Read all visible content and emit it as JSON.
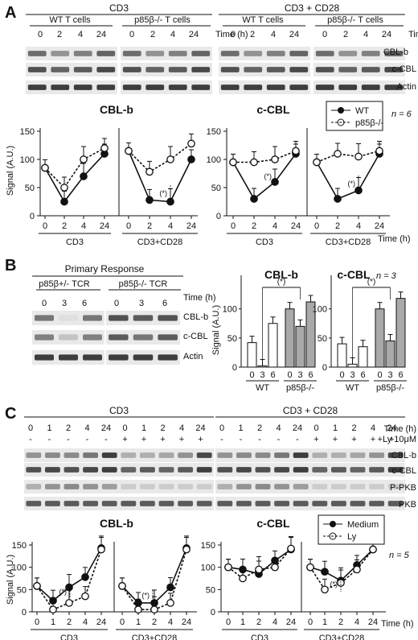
{
  "panel_labels": [
    "A",
    "B",
    "C"
  ],
  "colors": {
    "line": "#111111",
    "bar_white": "#ffffff",
    "bar_grey": "#a9a9a9",
    "band_bg": "#e9e9e9",
    "band": "#2b2b2b"
  },
  "A": {
    "treatment_left": "CD3",
    "treatment_right": "CD3 + CD28",
    "group_wt": "WT T cells",
    "group_ko": "p85β-/- T cells",
    "time_label": "Time (h)",
    "lanes": [
      "0",
      "2",
      "4",
      "24"
    ],
    "blots": [
      "CBL-b",
      "c-CBL",
      "Actin"
    ],
    "chart_titles": [
      "CBL-b",
      "c-CBL"
    ],
    "legend": [
      "WT",
      "p85β-/-"
    ],
    "n_label": "n = 6",
    "ylabel": "Signal (A.U.)",
    "yticks": [
      "0",
      "50",
      "100",
      "150"
    ],
    "xticks": [
      "0",
      "2",
      "4",
      "24"
    ],
    "xgroups": [
      "CD3",
      "CD3+CD28"
    ],
    "xlabel": "Time (h)",
    "sig": "(*)"
  },
  "B": {
    "title": "Primary Response",
    "group_het": "p85β+/- TCR",
    "group_ko": "p85β-/- TCR",
    "time_label": "Time (h)",
    "lanes": [
      "0",
      "3",
      "6"
    ],
    "blots": [
      "CBL-b",
      "c-CBL",
      "Actin"
    ],
    "chart_titles": [
      "CBL-b",
      "c-CBL"
    ],
    "n_label": "n = 3",
    "ylabel": "Signal (A.U.)",
    "yticks": [
      "0",
      "50",
      "100"
    ],
    "xticks": [
      "0",
      "3",
      "6"
    ],
    "xgroups": [
      "WT",
      "p85β-/-"
    ],
    "sig": "(*)"
  },
  "C": {
    "treatment_left": "CD3",
    "treatment_right": "CD3 + CD28",
    "time_label": "Time (h)",
    "ly_label": "+Ly 10μM",
    "lanes": [
      "0",
      "1",
      "2",
      "4",
      "24",
      "0",
      "1",
      "2",
      "4",
      "24"
    ],
    "ly_marks": [
      "-",
      "-",
      "-",
      "-",
      "-",
      "+",
      "+",
      "+",
      "+",
      "+"
    ],
    "blots": [
      "CBL-b",
      "c-CBL",
      "P-PKB",
      "PKB"
    ],
    "chart_titles": [
      "CBL-b",
      "c-CBL"
    ],
    "legend": [
      "Medium",
      "Ly"
    ],
    "n_label": "n = 5",
    "ylabel": "Signal (A.U.)",
    "yticks": [
      "0",
      "50",
      "100",
      "150"
    ],
    "xticks": [
      "0",
      "1",
      "2",
      "4",
      "24"
    ],
    "xgroups": [
      "CD3",
      "CD3+CD28"
    ],
    "xlabel": "Time (h)",
    "sig": "(*)"
  },
  "chart_data": [
    {
      "type": "line",
      "panel": "A",
      "title": "CBL-b",
      "ylabel": "Signal (A.U.)",
      "ylim": [
        0,
        150
      ],
      "x": [
        "0",
        "2",
        "4",
        "24"
      ],
      "grid": false,
      "legend_position": "top-right",
      "series": [
        {
          "name": "WT",
          "group": "CD3",
          "values": [
            85,
            25,
            70,
            110
          ]
        },
        {
          "name": "p85β-/-",
          "group": "CD3",
          "values": [
            85,
            50,
            100,
            120
          ]
        },
        {
          "name": "WT",
          "group": "CD3+CD28",
          "values": [
            115,
            28,
            25,
            100
          ]
        },
        {
          "name": "p85β-/-",
          "group": "CD3+CD28",
          "values": [
            115,
            78,
            100,
            128
          ]
        }
      ]
    },
    {
      "type": "line",
      "panel": "A",
      "title": "c-CBL",
      "ylabel": "Signal (A.U.)",
      "ylim": [
        0,
        150
      ],
      "x": [
        "0",
        "2",
        "4",
        "24"
      ],
      "grid": false,
      "legend_position": "top-right",
      "series": [
        {
          "name": "WT",
          "group": "CD3",
          "values": [
            95,
            30,
            60,
            110
          ]
        },
        {
          "name": "p85β-/-",
          "group": "CD3",
          "values": [
            95,
            95,
            100,
            115
          ]
        },
        {
          "name": "WT",
          "group": "CD3+CD28",
          "values": [
            95,
            30,
            45,
            110
          ]
        },
        {
          "name": "p85β-/-",
          "group": "CD3+CD28",
          "values": [
            95,
            110,
            105,
            115
          ]
        }
      ]
    },
    {
      "type": "bar",
      "panel": "B",
      "title": "CBL-b",
      "ylabel": "Signal (A.U.)",
      "ylim": [
        0,
        130
      ],
      "categories": [
        "0",
        "3",
        "6",
        "0",
        "3",
        "6"
      ],
      "groups": [
        "WT",
        "WT",
        "WT",
        "p85β-/-",
        "p85β-/-",
        "p85β-/-"
      ],
      "values": [
        42,
        2,
        75,
        100,
        70,
        112
      ]
    },
    {
      "type": "bar",
      "panel": "B",
      "title": "c-CBL",
      "ylabel": "Signal (A.U.)",
      "ylim": [
        0,
        130
      ],
      "categories": [
        "0",
        "3",
        "6",
        "0",
        "3",
        "6"
      ],
      "groups": [
        "WT",
        "WT",
        "WT",
        "p85β-/-",
        "p85β-/-",
        "p85β-/-"
      ],
      "values": [
        40,
        5,
        35,
        100,
        45,
        118
      ]
    },
    {
      "type": "line",
      "panel": "C",
      "title": "CBL-b",
      "ylabel": "Signal (A.U.)",
      "ylim": [
        0,
        150
      ],
      "x": [
        "0",
        "1",
        "2",
        "4",
        "24"
      ],
      "grid": false,
      "legend_position": "top-right",
      "series": [
        {
          "name": "Medium",
          "group": "CD3",
          "values": [
            58,
            25,
            55,
            78,
            143
          ]
        },
        {
          "name": "Ly",
          "group": "CD3",
          "values": [
            58,
            5,
            20,
            35,
            140
          ]
        },
        {
          "name": "Medium",
          "group": "CD3+CD28",
          "values": [
            58,
            20,
            20,
            55,
            143
          ]
        },
        {
          "name": "Ly",
          "group": "CD3+CD28",
          "values": [
            58,
            5,
            5,
            20,
            140
          ]
        }
      ]
    },
    {
      "type": "line",
      "panel": "C",
      "title": "c-CBL",
      "ylabel": "Signal (A.U.)",
      "ylim": [
        0,
        150
      ],
      "x": [
        "0",
        "1",
        "2",
        "4",
        "24"
      ],
      "grid": false,
      "legend_position": "top-right",
      "series": [
        {
          "name": "Medium",
          "group": "CD3",
          "values": [
            100,
            95,
            85,
            115,
            140
          ]
        },
        {
          "name": "Ly",
          "group": "CD3",
          "values": [
            100,
            75,
            95,
            100,
            142
          ]
        },
        {
          "name": "Medium",
          "group": "CD3+CD28",
          "values": [
            100,
            90,
            70,
            105,
            140
          ]
        },
        {
          "name": "Ly",
          "group": "CD3+CD28",
          "values": [
            100,
            50,
            65,
            95,
            140
          ]
        }
      ]
    }
  ]
}
